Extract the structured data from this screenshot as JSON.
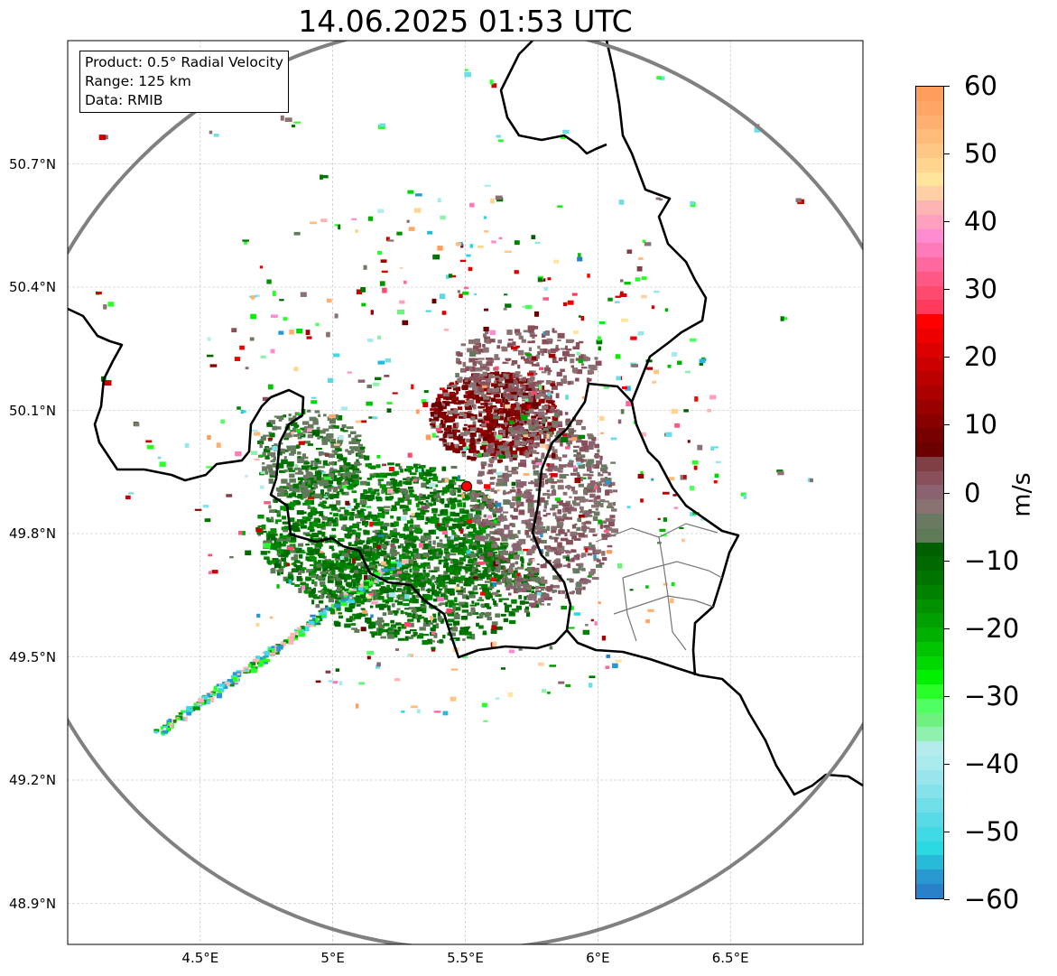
{
  "title": "14.06.2025 01:53 UTC",
  "info_box": {
    "product": "Product: 0.5° Radial Velocity",
    "range": "Range: 125 km",
    "data": "Data: RMIB"
  },
  "map": {
    "lon_range": [
      4.0,
      7.0
    ],
    "lat_range": [
      48.8,
      51.0
    ],
    "radar_site": {
      "lon": 5.505,
      "lat": 49.915,
      "color": "#ff0000"
    },
    "range_km": 125,
    "lat_ticks": [
      {
        "v": 50.7,
        "label": "50.7°N"
      },
      {
        "v": 50.4,
        "label": "50.4°N"
      },
      {
        "v": 50.1,
        "label": "50.1°N"
      },
      {
        "v": 49.8,
        "label": "49.8°N"
      },
      {
        "v": 49.5,
        "label": "49.5°N"
      },
      {
        "v": 49.2,
        "label": "49.2°N"
      },
      {
        "v": 48.9,
        "label": "48.9°N"
      }
    ],
    "lon_ticks": [
      {
        "v": 4.5,
        "label": "4.5°E"
      },
      {
        "v": 5.0,
        "label": "5°E"
      },
      {
        "v": 5.5,
        "label": "5.5°E"
      },
      {
        "v": 6.0,
        "label": "6°E"
      },
      {
        "v": 6.5,
        "label": "6.5°E"
      }
    ]
  },
  "colorbar": {
    "unit": "m/s",
    "min": -60,
    "max": 60,
    "ticks": [
      {
        "v": 60,
        "label": "60"
      },
      {
        "v": 50,
        "label": "50"
      },
      {
        "v": 40,
        "label": "40"
      },
      {
        "v": 30,
        "label": "30"
      },
      {
        "v": 20,
        "label": "20"
      },
      {
        "v": 10,
        "label": "10"
      },
      {
        "v": 0,
        "label": "0"
      },
      {
        "v": -10,
        "label": "−10"
      },
      {
        "v": -20,
        "label": "−20"
      },
      {
        "v": -30,
        "label": "−30"
      },
      {
        "v": -40,
        "label": "−40"
      },
      {
        "v": -50,
        "label": "−50"
      },
      {
        "v": -60,
        "label": "−60"
      }
    ],
    "colors_top_to_bottom": [
      "#ff9d5a",
      "#ffa565",
      "#ffb070",
      "#ffbb7a",
      "#ffc785",
      "#ffd58f",
      "#ffe49c",
      "#ffd0a6",
      "#ffb4b4",
      "#ffa0c0",
      "#ff8cd0",
      "#ff7ab8",
      "#ff689e",
      "#ff5884",
      "#ff4a70",
      "#ff3a5c",
      "#ff0000",
      "#ee0000",
      "#dd0000",
      "#cc0000",
      "#bb0000",
      "#aa0000",
      "#990000",
      "#880000",
      "#770000",
      "#6a0000",
      "#7f3f44",
      "#88505a",
      "#8a6270",
      "#8a7272",
      "#6a7a62",
      "#5e7a56",
      "#005f00",
      "#006a00",
      "#007400",
      "#008200",
      "#009000",
      "#00a000",
      "#00b000",
      "#00c400",
      "#00d800",
      "#00f000",
      "#28ff28",
      "#50ff60",
      "#70f080",
      "#90f0b0",
      "#b4ecee",
      "#a8eaee",
      "#98e6ec",
      "#86e2ea",
      "#70dee8",
      "#58dae6",
      "#40dae4",
      "#2ad8e2",
      "#28b8d8",
      "#2898d0",
      "#2880c8"
    ]
  }
}
